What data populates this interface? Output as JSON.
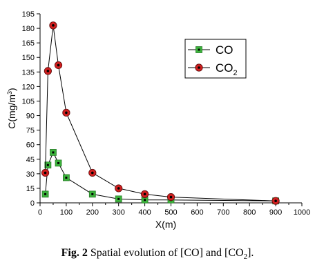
{
  "chart_data": {
    "type": "line",
    "xlabel": "X(m)",
    "ylabel": "C(mg/m",
    "ylabel_sup": "3",
    "ylabel_close": ")",
    "xlim": [
      0,
      1000
    ],
    "ylim": [
      0,
      195
    ],
    "xticks": [
      "0",
      "100",
      "200",
      "300",
      "400",
      "500",
      "600",
      "700",
      "800",
      "900",
      "1000"
    ],
    "yticks": [
      "0",
      "15",
      "30",
      "45",
      "60",
      "75",
      "90",
      "105",
      "120",
      "135",
      "150",
      "165",
      "180",
      "195"
    ],
    "grid": false,
    "legend_position": "top-right",
    "series": [
      {
        "name": "CO",
        "name_sub": "",
        "marker": "square",
        "color": "#3cb43c",
        "x": [
          20,
          30,
          50,
          70,
          100,
          200,
          300,
          400,
          500,
          900
        ],
        "y": [
          9,
          39,
          52,
          41,
          26,
          9,
          4,
          3,
          3,
          2
        ]
      },
      {
        "name": "CO",
        "name_sub": "2",
        "marker": "circle",
        "color": "#d11f1f",
        "x": [
          20,
          30,
          50,
          70,
          100,
          200,
          300,
          400,
          500,
          900
        ],
        "y": [
          31,
          136,
          183,
          142,
          93,
          31,
          15,
          9,
          6,
          2
        ]
      }
    ]
  },
  "caption": {
    "label": "Fig. 2",
    "text_before": " Spatial evolution of [CO] and [CO",
    "sub": "2",
    "text_after": "]."
  }
}
